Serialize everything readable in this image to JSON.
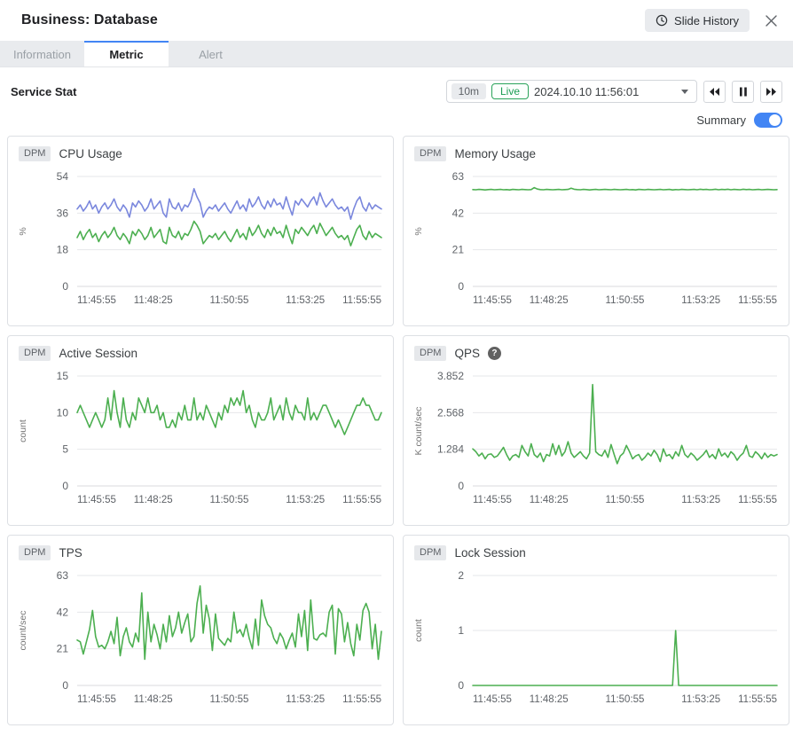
{
  "header": {
    "title": "Business: Database",
    "slide_history_label": "Slide History"
  },
  "tabs": {
    "information": "Information",
    "metric": "Metric",
    "alert": "Alert"
  },
  "toolbar": {
    "section_title": "Service Stat",
    "range_label": "10m",
    "live_label": "Live",
    "datetime": "2024.10.10 11:56:01",
    "summary_label": "Summary",
    "summary_on": true
  },
  "colors": {
    "accent": "#4285f4",
    "series_green": "#4caf50",
    "series_blue": "#7a87dd",
    "grid": "#e6e7e9",
    "zero_line": "#d8dadd",
    "axis_text": "#5f6368",
    "unit_text": "#757575",
    "live_green": "#2aa35a"
  },
  "chart_data": [
    {
      "type": "line",
      "badge": "DPM",
      "title": "CPU Usage",
      "ylabel": "%",
      "yticks": [
        "0",
        "18",
        "36",
        "54"
      ],
      "ymax": 54,
      "xticks": [
        "11:45:55",
        "11:48:25",
        "11:50:55",
        "11:53:25",
        "11:55:55"
      ],
      "series": [
        {
          "color": "#7a87dd",
          "values": [
            38,
            40,
            37,
            39,
            42,
            38,
            40,
            36,
            39,
            41,
            38,
            40,
            43,
            39,
            37,
            40,
            38,
            34,
            41,
            39,
            42,
            40,
            37,
            39,
            43,
            38,
            40,
            42,
            36,
            34,
            43,
            39,
            38,
            41,
            37,
            40,
            39,
            42,
            48,
            44,
            41,
            34,
            37,
            39,
            38,
            40,
            37,
            39,
            41,
            38,
            36,
            39,
            42,
            38,
            40,
            37,
            43,
            39,
            41,
            44,
            40,
            38,
            42,
            39,
            43,
            40,
            41,
            38,
            44,
            39,
            35,
            42,
            40,
            43,
            41,
            39,
            42,
            44,
            40,
            46,
            42,
            39,
            41,
            43,
            40,
            38,
            39,
            37,
            39,
            33,
            38,
            42,
            44,
            39,
            37,
            41,
            38,
            40,
            39,
            38
          ]
        },
        {
          "color": "#4caf50",
          "values": [
            24,
            27,
            23,
            26,
            28,
            24,
            26,
            22,
            25,
            27,
            24,
            26,
            29,
            25,
            23,
            26,
            24,
            21,
            27,
            25,
            28,
            26,
            23,
            25,
            29,
            24,
            26,
            28,
            22,
            21,
            29,
            25,
            24,
            27,
            23,
            26,
            25,
            28,
            32,
            30,
            27,
            21,
            23,
            25,
            24,
            26,
            23,
            25,
            27,
            24,
            22,
            25,
            28,
            24,
            26,
            23,
            29,
            25,
            27,
            30,
            26,
            24,
            28,
            25,
            29,
            26,
            27,
            24,
            30,
            25,
            21,
            28,
            26,
            29,
            27,
            25,
            28,
            30,
            26,
            31,
            28,
            25,
            27,
            29,
            26,
            24,
            25,
            23,
            25,
            20,
            24,
            28,
            30,
            25,
            23,
            27,
            24,
            26,
            25,
            24
          ]
        }
      ]
    },
    {
      "type": "line",
      "badge": "DPM",
      "title": "Memory Usage",
      "ylabel": "%",
      "yticks": [
        "0",
        "21",
        "42",
        "63"
      ],
      "ymax": 63,
      "xticks": [
        "11:45:55",
        "11:48:25",
        "11:50:55",
        "11:53:25",
        "11:55:55"
      ],
      "series": [
        {
          "color": "#4caf50",
          "values": [
            55.5,
            55.4,
            55.6,
            55.5,
            55.3,
            55.5,
            55.6,
            55.4,
            55.5,
            55.6,
            55.4,
            55.5,
            55.3,
            55.6,
            55.5,
            55.4,
            55.6,
            55.5,
            55.4,
            55.5,
            56.6,
            55.8,
            55.5,
            55.4,
            55.6,
            55.5,
            55.4,
            55.5,
            55.6,
            55.4,
            55.5,
            55.6,
            56.3,
            55.7,
            55.5,
            55.4,
            55.6,
            55.5,
            55.3,
            55.5,
            55.6,
            55.4,
            55.5,
            55.6,
            55.5,
            55.4,
            55.6,
            55.5,
            55.4,
            55.5,
            55.6,
            55.4,
            55.5,
            55.3,
            55.6,
            55.5,
            55.4,
            55.6,
            55.5,
            55.4,
            55.5,
            55.6,
            55.4,
            55.5,
            55.6,
            55.3,
            55.5,
            55.4,
            55.6,
            55.5,
            55.4,
            55.5,
            55.6,
            55.4,
            55.7,
            55.5,
            55.6,
            55.4,
            55.5,
            55.7,
            55.4,
            55.6,
            55.5,
            55.7,
            55.4,
            55.6,
            55.5,
            55.4,
            55.7,
            55.5,
            55.6,
            55.4,
            55.5,
            55.6,
            55.4,
            55.5,
            55.6,
            55.5,
            55.4,
            55.5
          ]
        }
      ]
    },
    {
      "type": "line",
      "badge": "DPM",
      "title": "Active Session",
      "ylabel": "count",
      "yticks": [
        "0",
        "5",
        "10",
        "15"
      ],
      "ymax": 15,
      "xticks": [
        "11:45:55",
        "11:48:25",
        "11:50:55",
        "11:53:25",
        "11:55:55"
      ],
      "series": [
        {
          "color": "#4caf50",
          "values": [
            10,
            11,
            10,
            9,
            8,
            9,
            10,
            9,
            8,
            9,
            12,
            9,
            13,
            10,
            8,
            12,
            9,
            8,
            10,
            9,
            12,
            11,
            10,
            12,
            10,
            10,
            11,
            9,
            10,
            8,
            8,
            9,
            8,
            10,
            9,
            11,
            9,
            9,
            12,
            9,
            10,
            9,
            11,
            10,
            9,
            8,
            10,
            9,
            11,
            10,
            12,
            11,
            12,
            11,
            13,
            10,
            11,
            9,
            8,
            10,
            9,
            9,
            10,
            12,
            9,
            10,
            11,
            9,
            12,
            10,
            9,
            11,
            10,
            10,
            9,
            12,
            9,
            10,
            9,
            10,
            11,
            11,
            10,
            9,
            8,
            9,
            8,
            7,
            8,
            9,
            10,
            11,
            11,
            12,
            11,
            11,
            10,
            9,
            9,
            10
          ]
        }
      ]
    },
    {
      "type": "line",
      "badge": "DPM",
      "title": "QPS",
      "help_icon": true,
      "ylabel": "K count/sec",
      "yticks": [
        "0",
        "1.284",
        "2.568",
        "3.852"
      ],
      "ymax": 3.852,
      "xticks": [
        "11:45:55",
        "11:48:25",
        "11:50:55",
        "11:53:25",
        "11:55:55"
      ],
      "series": [
        {
          "color": "#4caf50",
          "values": [
            1.3,
            1.2,
            1.05,
            1.15,
            0.95,
            1.1,
            1.12,
            1.0,
            1.05,
            1.2,
            1.35,
            1.1,
            0.9,
            1.05,
            1.1,
            1.0,
            1.42,
            1.2,
            1.05,
            1.48,
            1.1,
            1.0,
            1.15,
            0.85,
            1.1,
            1.05,
            1.48,
            1.1,
            1.42,
            1.05,
            1.2,
            1.55,
            1.15,
            1.0,
            1.1,
            1.2,
            1.05,
            0.95,
            1.15,
            3.55,
            1.2,
            1.1,
            1.05,
            1.25,
            1.0,
            1.45,
            1.1,
            0.78,
            1.05,
            1.15,
            1.42,
            1.2,
            0.95,
            1.05,
            1.1,
            0.9,
            1.0,
            1.15,
            1.05,
            1.25,
            1.1,
            0.85,
            1.3,
            1.05,
            1.1,
            0.95,
            1.2,
            1.05,
            1.42,
            1.1,
            1.0,
            1.15,
            1.05,
            0.9,
            1.0,
            1.1,
            1.25,
            1.0,
            1.1,
            0.95,
            1.3,
            1.05,
            1.15,
            1.0,
            1.2,
            1.1,
            0.9,
            1.05,
            1.15,
            1.42,
            1.05,
            1.0,
            1.2,
            1.1,
            0.95,
            1.15,
            1.0,
            1.1,
            1.05,
            1.1
          ]
        }
      ]
    },
    {
      "type": "line",
      "badge": "DPM",
      "title": "TPS",
      "ylabel": "count/sec",
      "yticks": [
        "0",
        "21",
        "42",
        "63"
      ],
      "ymax": 63,
      "xticks": [
        "11:45:55",
        "11:48:25",
        "11:50:55",
        "11:53:25",
        "11:55:55"
      ],
      "series": [
        {
          "color": "#4caf50",
          "values": [
            26,
            25,
            18,
            25,
            32,
            43,
            28,
            22,
            23,
            21,
            25,
            31,
            24,
            39,
            17,
            28,
            33,
            25,
            22,
            30,
            25,
            53,
            15,
            42,
            25,
            35,
            29,
            21,
            35,
            25,
            40,
            28,
            33,
            42,
            30,
            36,
            41,
            25,
            28,
            47,
            57,
            30,
            46,
            38,
            20,
            41,
            27,
            25,
            23,
            27,
            25,
            42,
            30,
            32,
            28,
            35,
            27,
            21,
            38,
            23,
            49,
            40,
            35,
            33,
            27,
            24,
            30,
            27,
            21,
            26,
            30,
            22,
            41,
            28,
            43,
            20,
            49,
            27,
            26,
            29,
            30,
            28,
            42,
            46,
            18,
            44,
            41,
            25,
            36,
            24,
            17,
            35,
            26,
            43,
            47,
            42,
            21,
            35,
            15,
            31
          ]
        }
      ]
    },
    {
      "type": "line",
      "badge": "DPM",
      "title": "Lock Session",
      "ylabel": "count",
      "yticks": [
        "0",
        "1",
        "2"
      ],
      "ymax": 2,
      "xticks": [
        "11:45:55",
        "11:48:25",
        "11:50:55",
        "11:53:25",
        "11:55:55"
      ],
      "series": [
        {
          "color": "#4caf50",
          "values": [
            0,
            0,
            0,
            0,
            0,
            0,
            0,
            0,
            0,
            0,
            0,
            0,
            0,
            0,
            0,
            0,
            0,
            0,
            0,
            0,
            0,
            0,
            0,
            0,
            0,
            0,
            0,
            0,
            0,
            0,
            0,
            0,
            0,
            0,
            0,
            0,
            0,
            0,
            0,
            0,
            0,
            0,
            0,
            0,
            0,
            0,
            0,
            0,
            0,
            0,
            0,
            0,
            0,
            0,
            0,
            0,
            0,
            0,
            0,
            0,
            0,
            0,
            0,
            0,
            0,
            0,
            1,
            0,
            0,
            0,
            0,
            0,
            0,
            0,
            0,
            0,
            0,
            0,
            0,
            0,
            0,
            0,
            0,
            0,
            0,
            0,
            0,
            0,
            0,
            0,
            0,
            0,
            0,
            0,
            0,
            0,
            0,
            0,
            0,
            0
          ]
        }
      ]
    }
  ]
}
